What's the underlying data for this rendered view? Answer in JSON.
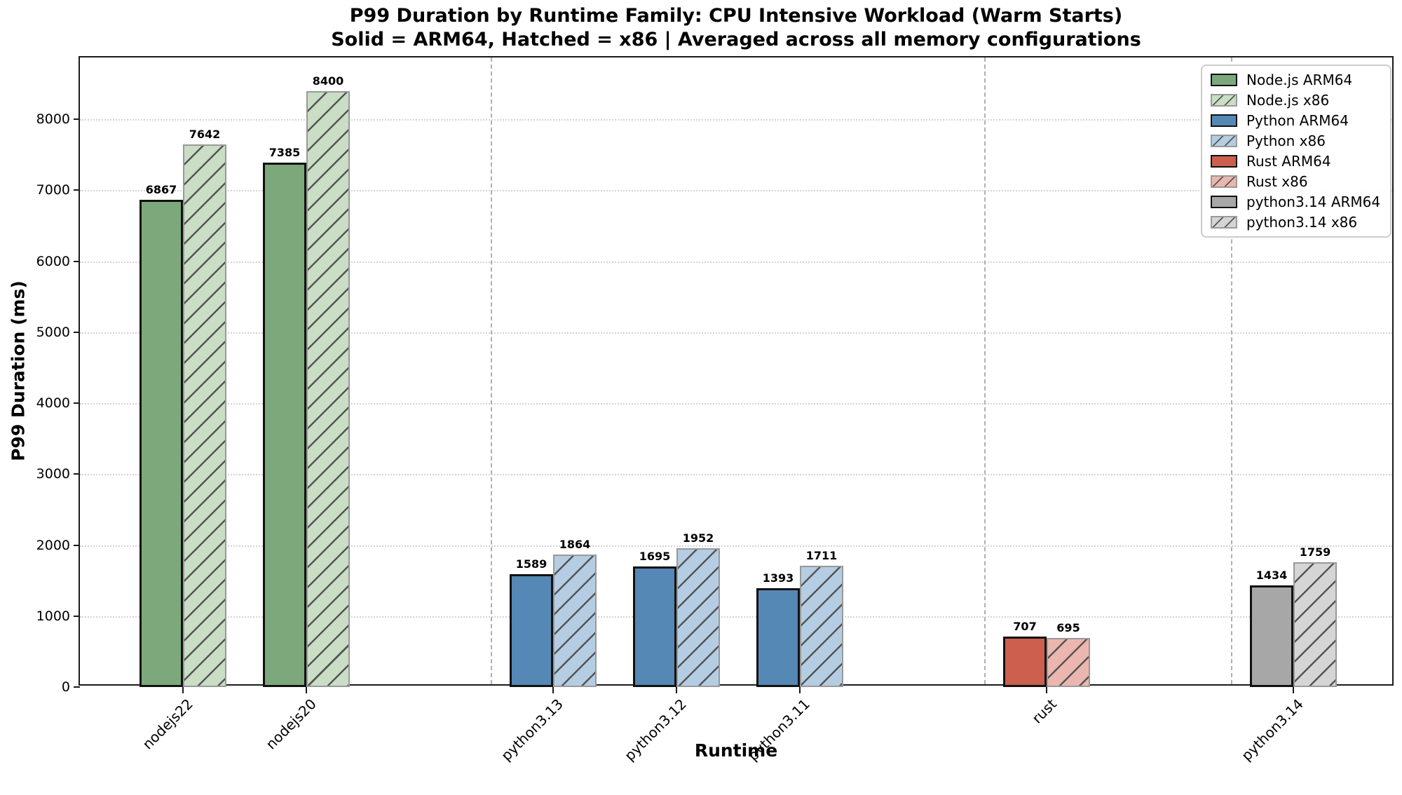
{
  "chart_data": {
    "type": "bar",
    "title": "P99 Duration by Runtime Family: CPU Intensive Workload (Warm Starts)",
    "subtitle": "Solid = ARM64, Hatched = x86 | Averaged across all memory configurations",
    "xlabel": "Runtime",
    "ylabel": "P99 Duration (ms)",
    "ylim": [
      0,
      8870
    ],
    "yticks": [
      0,
      1000,
      2000,
      3000,
      4000,
      5000,
      6000,
      7000,
      8000
    ],
    "grid": "horizontal dotted gridlines",
    "legend_position": "upper right",
    "categories": [
      "nodejs22",
      "nodejs20",
      "python3.13",
      "python3.12",
      "python3.11",
      "rust",
      "python3.14"
    ],
    "slots": [
      0,
      1,
      3,
      4,
      5,
      7,
      9
    ],
    "families": [
      "nodejs",
      "nodejs",
      "python",
      "python",
      "python",
      "rust",
      "python314"
    ],
    "separator_slots": [
      2.5,
      6.5,
      8.5
    ],
    "series": [
      {
        "name": "ARM64",
        "style": "solid",
        "values": [
          6867,
          7385,
          1589,
          1695,
          1393,
          707,
          1434
        ]
      },
      {
        "name": "x86",
        "style": "hatched",
        "values": [
          7642,
          8400,
          1864,
          1952,
          1711,
          695,
          1759
        ]
      }
    ],
    "colors": {
      "nodejs": {
        "solid": "#7DA87B",
        "light": "#C9DEC4"
      },
      "python": {
        "solid": "#5588B4",
        "light": "#B4CDE3"
      },
      "rust": {
        "solid": "#CC5F4E",
        "light": "#EBB6AE"
      },
      "python314": {
        "solid": "#A7A7A7",
        "light": "#D5D5D5"
      },
      "solid_edge": "#111111",
      "hatch_edge": "#999999",
      "hatch_line": "#555555",
      "grid": "#d4d4d4",
      "separator": "#b0b0b0"
    },
    "legend": [
      {
        "label": "Node.js ARM64",
        "family": "nodejs",
        "hatched": false
      },
      {
        "label": "Node.js x86",
        "family": "nodejs",
        "hatched": true
      },
      {
        "label": "Python ARM64",
        "family": "python",
        "hatched": false
      },
      {
        "label": "Python x86",
        "family": "python",
        "hatched": true
      },
      {
        "label": "Rust ARM64",
        "family": "rust",
        "hatched": false
      },
      {
        "label": "Rust x86",
        "family": "rust",
        "hatched": true
      },
      {
        "label": "python3.14 ARM64",
        "family": "python314",
        "hatched": false
      },
      {
        "label": "python3.14 x86",
        "family": "python314",
        "hatched": true
      }
    ]
  }
}
